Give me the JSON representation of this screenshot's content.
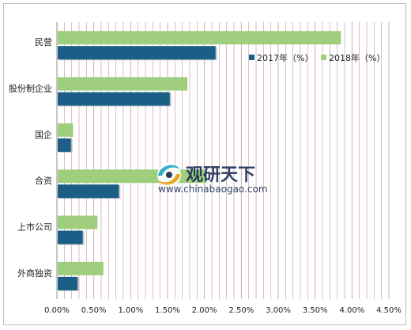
{
  "chart_data": {
    "type": "bar",
    "orientation": "horizontal",
    "categories": [
      "民营",
      "股份制企业",
      "国企",
      "合资",
      "上市公司",
      "外商独资"
    ],
    "series": [
      {
        "name": "2017年（%）",
        "color": "#1b5f86",
        "values": [
          2.15,
          1.53,
          0.19,
          0.84,
          0.35,
          0.28
        ]
      },
      {
        "name": "2018年（%）",
        "color": "#9fcf7e",
        "values": [
          3.85,
          1.77,
          0.22,
          2.03,
          0.55,
          0.63
        ]
      }
    ],
    "xlim": [
      0,
      4.5
    ],
    "xticks": [
      "0.00%",
      "0.50%",
      "1.00%",
      "1.50%",
      "2.00%",
      "2.50%",
      "3.00%",
      "3.50%",
      "4.00%",
      "4.50%"
    ],
    "grid": true,
    "grid_color": "#c9a3ad",
    "legend_position": "top-right",
    "title": "",
    "xlabel": "",
    "ylabel": ""
  },
  "watermark": {
    "brand_cn": "观研天下",
    "brand_url": "www.chinabaogao.com",
    "icon": "swirl-logo-icon"
  }
}
